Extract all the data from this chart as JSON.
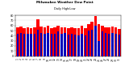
{
  "title": "Milwaukee Weather Dew Point",
  "subtitle": "Daily High/Low",
  "ylim": [
    0,
    80
  ],
  "ytick_labels": [
    "0",
    "10",
    "20",
    "30",
    "40",
    "50",
    "60",
    "70",
    "80"
  ],
  "ytick_vals": [
    0,
    10,
    20,
    30,
    40,
    50,
    60,
    70,
    80
  ],
  "background_color": "#ffffff",
  "high_color": "#ff0000",
  "low_color": "#0000bb",
  "days": [
    "1",
    "2",
    "3",
    "4",
    "5",
    "6",
    "7",
    "8",
    "9",
    "10",
    "11",
    "12",
    "13",
    "14",
    "15",
    "16",
    "17",
    "18",
    "19",
    "20",
    "21",
    "22",
    "23",
    "24",
    "25",
    "26",
    "27",
    "28",
    "29",
    "30",
    "31"
  ],
  "highs": [
    56,
    58,
    55,
    57,
    55,
    57,
    73,
    58,
    56,
    60,
    55,
    57,
    60,
    56,
    57,
    55,
    56,
    55,
    55,
    59,
    55,
    62,
    68,
    79,
    62,
    60,
    57,
    57,
    58,
    56,
    54
  ],
  "lows": [
    44,
    45,
    43,
    44,
    43,
    44,
    52,
    45,
    43,
    46,
    43,
    44,
    48,
    43,
    45,
    42,
    44,
    42,
    41,
    44,
    41,
    50,
    52,
    60,
    30,
    48,
    46,
    44,
    46,
    44,
    42
  ]
}
